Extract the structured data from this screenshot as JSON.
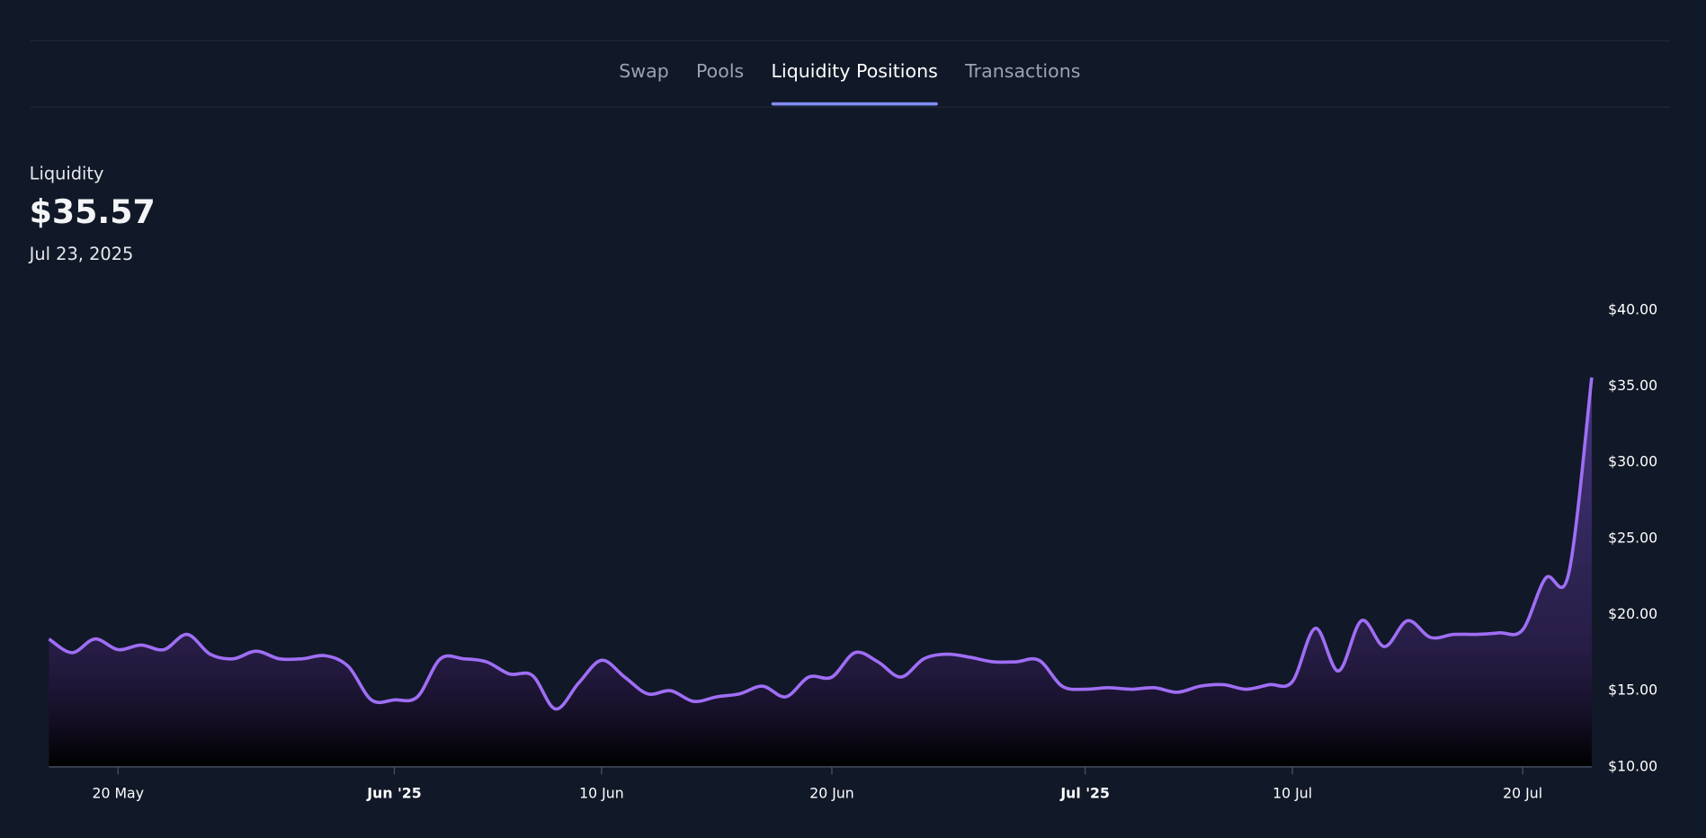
{
  "nav": {
    "tabs": [
      "Swap",
      "Pools",
      "Liquidity Positions",
      "Transactions"
    ],
    "active_tab": 2
  },
  "chart_data": {
    "type": "line",
    "title": "Liquidity",
    "current_value": "$35.57",
    "current_date": "Jul 23, 2025",
    "x": [
      "2025-05-17",
      "2025-05-18",
      "2025-05-19",
      "2025-05-20",
      "2025-05-21",
      "2025-05-22",
      "2025-05-23",
      "2025-05-24",
      "2025-05-25",
      "2025-05-26",
      "2025-05-27",
      "2025-05-28",
      "2025-05-29",
      "2025-05-30",
      "2025-05-31",
      "2025-06-01",
      "2025-06-02",
      "2025-06-03",
      "2025-06-04",
      "2025-06-05",
      "2025-06-06",
      "2025-06-07",
      "2025-06-08",
      "2025-06-09",
      "2025-06-10",
      "2025-06-11",
      "2025-06-12",
      "2025-06-13",
      "2025-06-14",
      "2025-06-15",
      "2025-06-16",
      "2025-06-17",
      "2025-06-18",
      "2025-06-19",
      "2025-06-20",
      "2025-06-21",
      "2025-06-22",
      "2025-06-23",
      "2025-06-24",
      "2025-06-25",
      "2025-06-26",
      "2025-06-27",
      "2025-06-28",
      "2025-06-29",
      "2025-06-30",
      "2025-07-01",
      "2025-07-02",
      "2025-07-03",
      "2025-07-04",
      "2025-07-05",
      "2025-07-06",
      "2025-07-07",
      "2025-07-08",
      "2025-07-09",
      "2025-07-10",
      "2025-07-11",
      "2025-07-12",
      "2025-07-13",
      "2025-07-14",
      "2025-07-15",
      "2025-07-16",
      "2025-07-17",
      "2025-07-18",
      "2025-07-19",
      "2025-07-20",
      "2025-07-21",
      "2025-07-22",
      "2025-07-23"
    ],
    "series": [
      {
        "name": "Liquidity",
        "color": "#9f6ef5",
        "values": [
          18.4,
          17.5,
          18.4,
          17.7,
          18.0,
          17.7,
          18.7,
          17.4,
          17.1,
          17.6,
          17.1,
          17.1,
          17.3,
          16.6,
          14.4,
          14.4,
          14.6,
          17.1,
          17.1,
          16.9,
          16.1,
          16.0,
          13.8,
          15.5,
          17.0,
          15.9,
          14.8,
          15.0,
          14.3,
          14.6,
          14.8,
          15.3,
          14.6,
          15.9,
          15.9,
          17.5,
          16.9,
          15.9,
          17.1,
          17.4,
          17.2,
          16.9,
          16.9,
          17.0,
          15.3,
          15.1,
          15.2,
          15.1,
          15.2,
          14.9,
          15.3,
          15.4,
          15.1,
          15.4,
          15.6,
          19.1,
          16.3,
          19.6,
          17.9,
          19.6,
          18.5,
          18.7,
          18.7,
          18.8,
          19.0,
          22.4,
          22.7,
          35.57
        ]
      }
    ],
    "xlim": [
      "2025-05-17",
      "2025-07-23"
    ],
    "xticks": [
      {
        "value": "2025-05-20",
        "label": "20 May"
      },
      {
        "value": "2025-06-01",
        "label": "Jun '25",
        "bold": true
      },
      {
        "value": "2025-06-10",
        "label": "10 Jun"
      },
      {
        "value": "2025-06-20",
        "label": "20 Jun"
      },
      {
        "value": "2025-07-01",
        "label": "Jul '25",
        "bold": true
      },
      {
        "value": "2025-07-10",
        "label": "10 Jul"
      },
      {
        "value": "2025-07-20",
        "label": "20 Jul"
      }
    ],
    "ylim": [
      10,
      40
    ],
    "yticks": [
      {
        "value": 10,
        "label": "$10.00"
      },
      {
        "value": 15,
        "label": "$15.00"
      },
      {
        "value": 20,
        "label": "$20.00"
      },
      {
        "value": 25,
        "label": "$25.00"
      },
      {
        "value": 30,
        "label": "$30.00"
      },
      {
        "value": 35,
        "label": "$35.00"
      },
      {
        "value": 40,
        "label": "$40.00"
      }
    ]
  }
}
